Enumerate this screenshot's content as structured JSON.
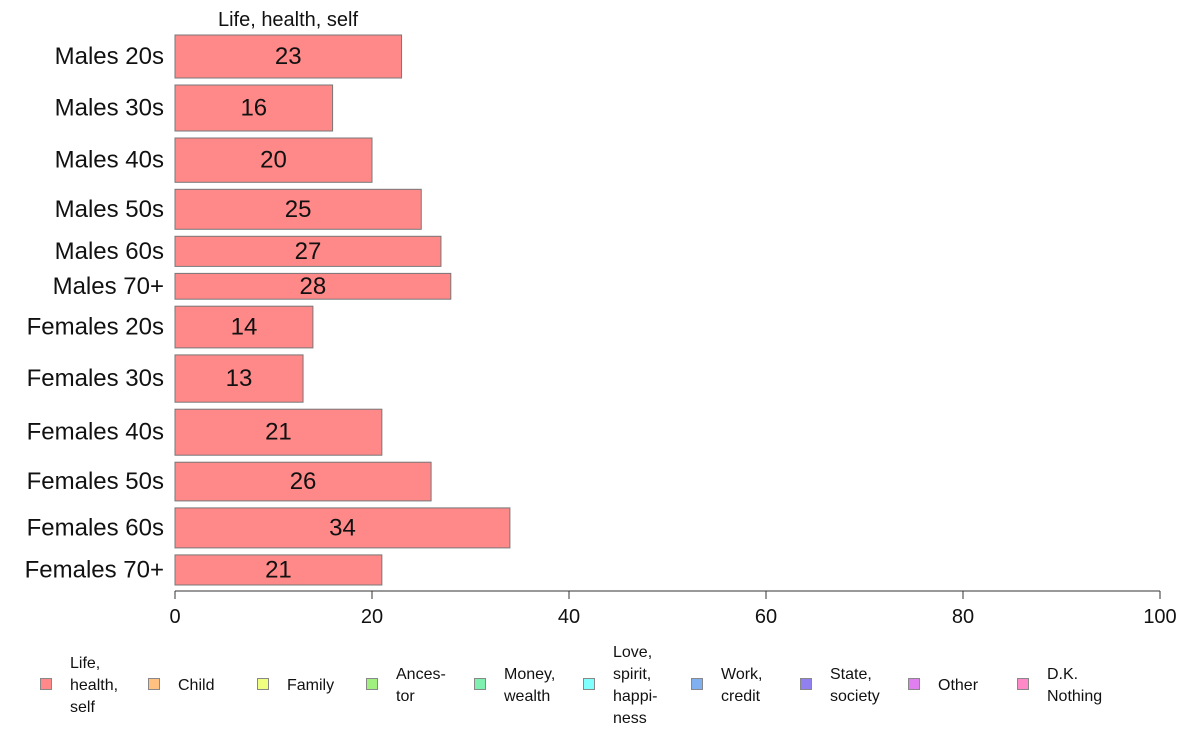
{
  "chart_data": {
    "type": "bar",
    "orientation": "horizontal",
    "panel_title": "Life, health, self",
    "categories": [
      "Males 20s",
      "Males 30s",
      "Males 40s",
      "Males 50s",
      "Males 60s",
      "Males 70+",
      "Females 20s",
      "Females 30s",
      "Females 40s",
      "Females 50s",
      "Females 60s",
      "Females 70+"
    ],
    "relative_bar_heights": [
      1.0,
      1.07,
      1.03,
      0.93,
      0.7,
      0.6,
      0.97,
      1.1,
      1.07,
      0.9,
      0.93,
      0.7
    ],
    "series": [
      {
        "name": "Life,\nhealth,\nself",
        "color": "#ff8888",
        "values": [
          23,
          16,
          20,
          25,
          27,
          28,
          14,
          13,
          21,
          26,
          34,
          21
        ],
        "labels": [
          "23",
          "16",
          "20",
          "25",
          "27",
          "28",
          "14",
          "13",
          "21",
          "26",
          "34",
          "21"
        ]
      }
    ],
    "xlim": [
      0,
      100
    ],
    "x_ticks": [
      0,
      20,
      40,
      60,
      80,
      100
    ],
    "x_tick_labels": [
      "0",
      "20",
      "40",
      "60",
      "80",
      "100"
    ],
    "grid": false,
    "legend": {
      "position": "bottom",
      "items": [
        {
          "label": "Life,\nhealth,\nself",
          "color": "#ff8888"
        },
        {
          "label": "Child",
          "color": "#ffc080"
        },
        {
          "label": "Family",
          "color": "#f0ff80"
        },
        {
          "label": "Ances-\ntor",
          "color": "#a0f080"
        },
        {
          "label": "Money,\nwealth",
          "color": "#80f0b0"
        },
        {
          "label": "Love,\nspirit,\nhappi-\nness",
          "color": "#80ffff"
        },
        {
          "label": "Work,\ncredit",
          "color": "#80b0f0"
        },
        {
          "label": "State,\nsociety",
          "color": "#9080f0"
        },
        {
          "label": "Other",
          "color": "#e080f0"
        },
        {
          "label": "D.K.\nNothing",
          "color": "#ff88c8"
        }
      ]
    }
  }
}
